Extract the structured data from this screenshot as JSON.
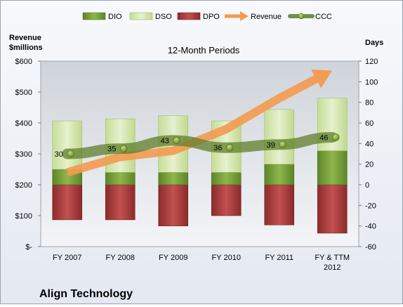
{
  "chart_data": {
    "type": "bar",
    "title": "12-Month Periods",
    "company": "Align Technology",
    "left_axis": {
      "label_line1": "Revenue",
      "label_line2": "$millions",
      "range": [
        0,
        600
      ],
      "ticks": [
        "$-",
        "$100",
        "$200",
        "$300",
        "$400",
        "$500",
        "$600"
      ]
    },
    "right_axis": {
      "label": "Days",
      "range": [
        -60,
        120
      ],
      "ticks": [
        "-60",
        "-40",
        "-20",
        "0",
        "20",
        "40",
        "60",
        "80",
        "100",
        "120"
      ]
    },
    "categories": [
      "FY 2007",
      "FY 2008",
      "FY 2009",
      "FY 2010",
      "FY 2011",
      "FY & TTM\n2012"
    ],
    "series": [
      {
        "name": "DIO",
        "color": "#7aa23a",
        "values": [
          15,
          12,
          12,
          12,
          20,
          33
        ]
      },
      {
        "name": "DSO",
        "color": "#d7e8b3",
        "values": [
          47,
          52,
          55,
          50,
          53,
          51
        ]
      },
      {
        "name": "DPO",
        "color": "#a83b3b",
        "values": [
          -34,
          -34,
          -40,
          -30,
          -39,
          -47
        ]
      },
      {
        "name": "Revenue",
        "color": "#f39a4f",
        "values": [
          240,
          290,
          310,
          380,
          480,
          570
        ]
      },
      {
        "name": "CCC",
        "color": "#5f7f2a",
        "values": [
          30,
          35,
          43,
          36,
          39,
          46
        ]
      }
    ],
    "ccc_labels": [
      "30",
      "35",
      "43",
      "36",
      "39",
      "46"
    ],
    "legend": [
      "DIO",
      "DSO",
      "DPO",
      "Revenue",
      "CCC"
    ],
    "legend_position": "top",
    "grid": false
  }
}
